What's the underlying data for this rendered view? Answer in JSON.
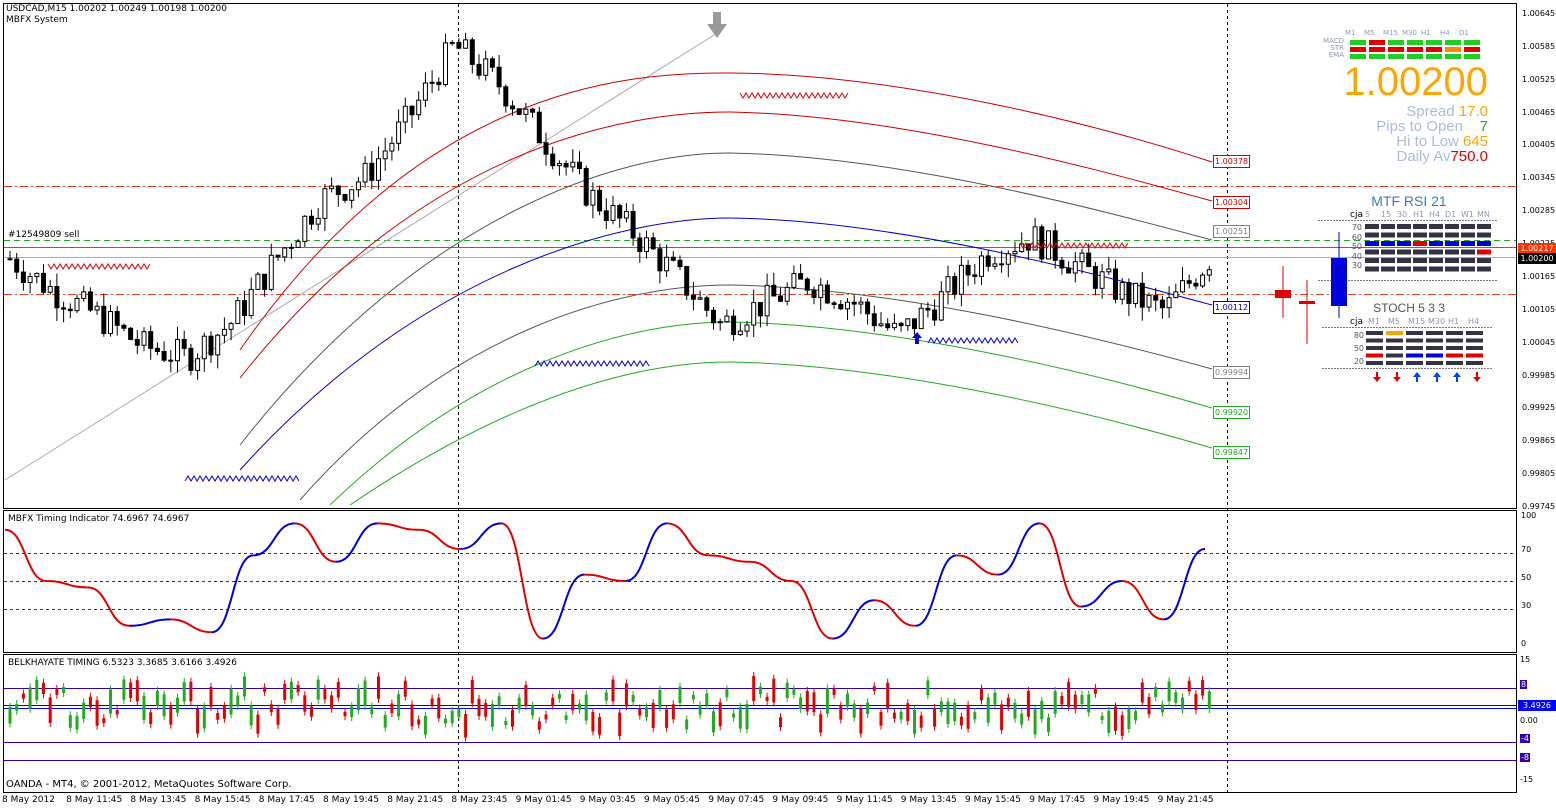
{
  "header": {
    "symbol_line": "USDCAD,M15  1.00202 1.00249 1.00198 1.00200",
    "system": "MBFX System",
    "order_label": "#12549809 sell",
    "copyright": "OANDA - MT4, © 2001-2012, MetaQuotes Software Corp."
  },
  "colors": {
    "bull": "#ffffff",
    "bear": "#000000",
    "red": "#e00000",
    "green": "#22aa22",
    "blue": "#0000cc",
    "gray": "#808080",
    "orange": "#ffa500"
  },
  "price_axis": {
    "ticks": [
      "1.00645",
      "1.00585",
      "1.00525",
      "1.00465",
      "1.00405",
      "1.00345",
      "1.00285",
      "1.00225",
      "1.00165",
      "1.00105",
      "1.00045",
      "0.99985",
      "0.99925",
      "0.99865",
      "0.99805",
      "0.99745"
    ],
    "tags": [
      {
        "value": "1.00217",
        "color": "#ff3300",
        "fill": true
      },
      {
        "value": "1.00200",
        "color": "#000000",
        "fill": true
      }
    ]
  },
  "band_labels": [
    {
      "value": "1.00378",
      "color": "#cc0000"
    },
    {
      "value": "1.00304",
      "color": "#cc0000"
    },
    {
      "value": "1.00251",
      "color": "#808080"
    },
    {
      "value": "1.00112",
      "color": "#0000cc"
    },
    {
      "value": "0.99994",
      "color": "#808080"
    },
    {
      "value": "0.99920",
      "color": "#22aa22"
    },
    {
      "value": "0.99847",
      "color": "#22aa22"
    }
  ],
  "time_axis": [
    "8 May 2012",
    "8 May 11:45",
    "8 May 13:45",
    "8 May 15:45",
    "8 May 17:45",
    "8 May 19:45",
    "8 May 21:45",
    "8 May 23:45",
    "9 May 01:45",
    "9 May 03:45",
    "9 May 05:45",
    "9 May 07:45",
    "9 May 09:45",
    "9 May 11:45",
    "9 May 13:45",
    "9 May 15:45",
    "9 May 17:45",
    "9 May 19:45",
    "9 May 21:45"
  ],
  "dashboard": {
    "tf_labels": [
      "M1",
      "M5",
      "M15",
      "M30",
      "H1",
      "H4",
      "D1"
    ],
    "row_labels": [
      "MACD",
      "STR",
      "EMA"
    ],
    "price": "1.00200",
    "spread_label": "Spread",
    "spread_value": "17.0",
    "pips_label": "Pips to Open",
    "pips_value": "7",
    "hilow_label": "Hi to Low",
    "hilow_value": "645",
    "daily_label": "Daily Av",
    "daily_value": "750.0"
  },
  "rsi_panel": {
    "title": "MTF RSI  21",
    "cja": "cja",
    "tf_labels": [
      "5",
      "15",
      "30",
      "H1",
      "H4",
      "D1",
      "W1",
      "MN"
    ],
    "levels": [
      "70",
      "60",
      "50",
      "40",
      "30"
    ]
  },
  "stoch_panel": {
    "title": "STOCH  5 3 3",
    "cja": "cja",
    "tf_labels": [
      "M1",
      "M5",
      "M15",
      "M30",
      "H1",
      "H4"
    ],
    "levels": [
      "80",
      "50",
      "20"
    ]
  },
  "timing_indicator": {
    "title": "MBFX Timing Indicator 74.6967 74.6967",
    "axis": [
      "100",
      "70",
      "50",
      "30",
      "0"
    ]
  },
  "belkhayate": {
    "title": "BELKHAYATE TIMING  6.5323 3.3685 3.6166 3.4926",
    "axis": [
      "15",
      "8",
      "3.4926",
      "0.00",
      "-4",
      "-8",
      "-15"
    ]
  },
  "chart_data": {
    "type": "candlestick",
    "title": "USDCAD,M15",
    "ylim": [
      0.99745,
      1.00665
    ],
    "series": [
      {
        "name": "USDCAD M15",
        "close": [
          1.002,
          1.0014,
          1.00095,
          1.0004,
          1.0002,
          1.00085,
          1.002,
          1.0031,
          1.0035,
          1.0046,
          1.0059,
          1.0052,
          1.0042,
          1.0032,
          1.0025,
          1.0017,
          1.0008,
          1.0012,
          1.0016,
          1.0012,
          1.0006,
          1.0013,
          1.0021,
          1.0024,
          1.0019,
          1.0014,
          1.00105,
          1.002
        ]
      },
      {
        "name": "MBFX Timing Indicator",
        "values": [
          90,
          50,
          45,
          15,
          20,
          10,
          70,
          95,
          65,
          95,
          90,
          75,
          95,
          5,
          55,
          50,
          95,
          70,
          65,
          50,
          5,
          35,
          15,
          70,
          55,
          95,
          30,
          50,
          20,
          75
        ]
      },
      {
        "name": "BELKHAYATE TIMING",
        "last": [
          6.5323,
          3.3685,
          3.6166,
          3.4926
        ]
      }
    ]
  }
}
